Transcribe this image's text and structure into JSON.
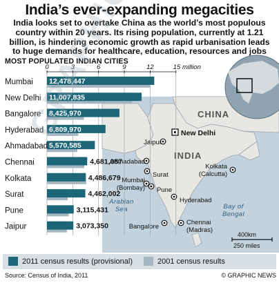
{
  "header": {
    "title": "India’s ever-expanding megacities",
    "intro": "India looks set to overtake China as the world’s most populous country within 20 years. Its rising population, currently at 1.21 billion, is hindering economic growth as rapid urbanisation leads to huge demands for healthcare, education, resources and jobs"
  },
  "chart_data": {
    "type": "bar",
    "orientation": "horizontal",
    "title": "Most Populated Indian Cities",
    "xlim": [
      0,
      15
    ],
    "xticks": [
      {
        "value": 0,
        "label": "0"
      },
      {
        "value": 3,
        "label": "3"
      },
      {
        "value": 6,
        "label": "6"
      },
      {
        "value": 9,
        "label": "9"
      },
      {
        "value": 12,
        "label": "12"
      },
      {
        "value": 15,
        "label": "15 million"
      }
    ],
    "grid": true,
    "categories": [
      "Mumbai",
      "New Delhi",
      "Bangalore",
      "Hyderabad",
      "Ahmadabad",
      "Chennai",
      "Kolkata",
      "Surat",
      "Pune",
      "Jaipur"
    ],
    "series": [
      {
        "name": "2011 census results (provisional)",
        "color": "#1d6678",
        "values": [
          12.478447,
          11.007835,
          8.42597,
          6.80997,
          5.570585,
          4.681087,
          4.486679,
          4.462002,
          3.115431,
          3.07335
        ],
        "labels": [
          "12,478,447",
          "11,007,835",
          "8,425,970",
          "6,809,970",
          "5,570,585",
          "4,681,087",
          "4,486,679",
          "4,462,002",
          "3,115,431",
          "3,073,350"
        ]
      },
      {
        "name": "2001 census results",
        "color": "#a3b6c1",
        "values": [
          11.98,
          9.88,
          4.3,
          3.64,
          3.52,
          4.34,
          4.57,
          2.43,
          2.54,
          2.32
        ]
      }
    ],
    "legend_position": "bottom"
  },
  "map": {
    "china_label": "CHINA",
    "india_label": "INDIA",
    "sea_label": "Arabian Sea",
    "bay_label": "Bay of Bengal",
    "capital": "New Delhi",
    "cities": [
      "Jaipur",
      "Ahmadabad",
      "Surat",
      "Mumbai (Bombay)",
      "Pune",
      "Hyderabad",
      "Bangalore",
      "Chennai (Madras)",
      "Kolkata (Calcutta)"
    ],
    "scale_km": "400km",
    "scale_miles": "250 miles",
    "land_color": "#e9e7e3",
    "sea_color": "#c3d2dc"
  },
  "footer": {
    "source": "Source: Census of India, 2011",
    "credit": "© GRAPHIC NEWS"
  }
}
